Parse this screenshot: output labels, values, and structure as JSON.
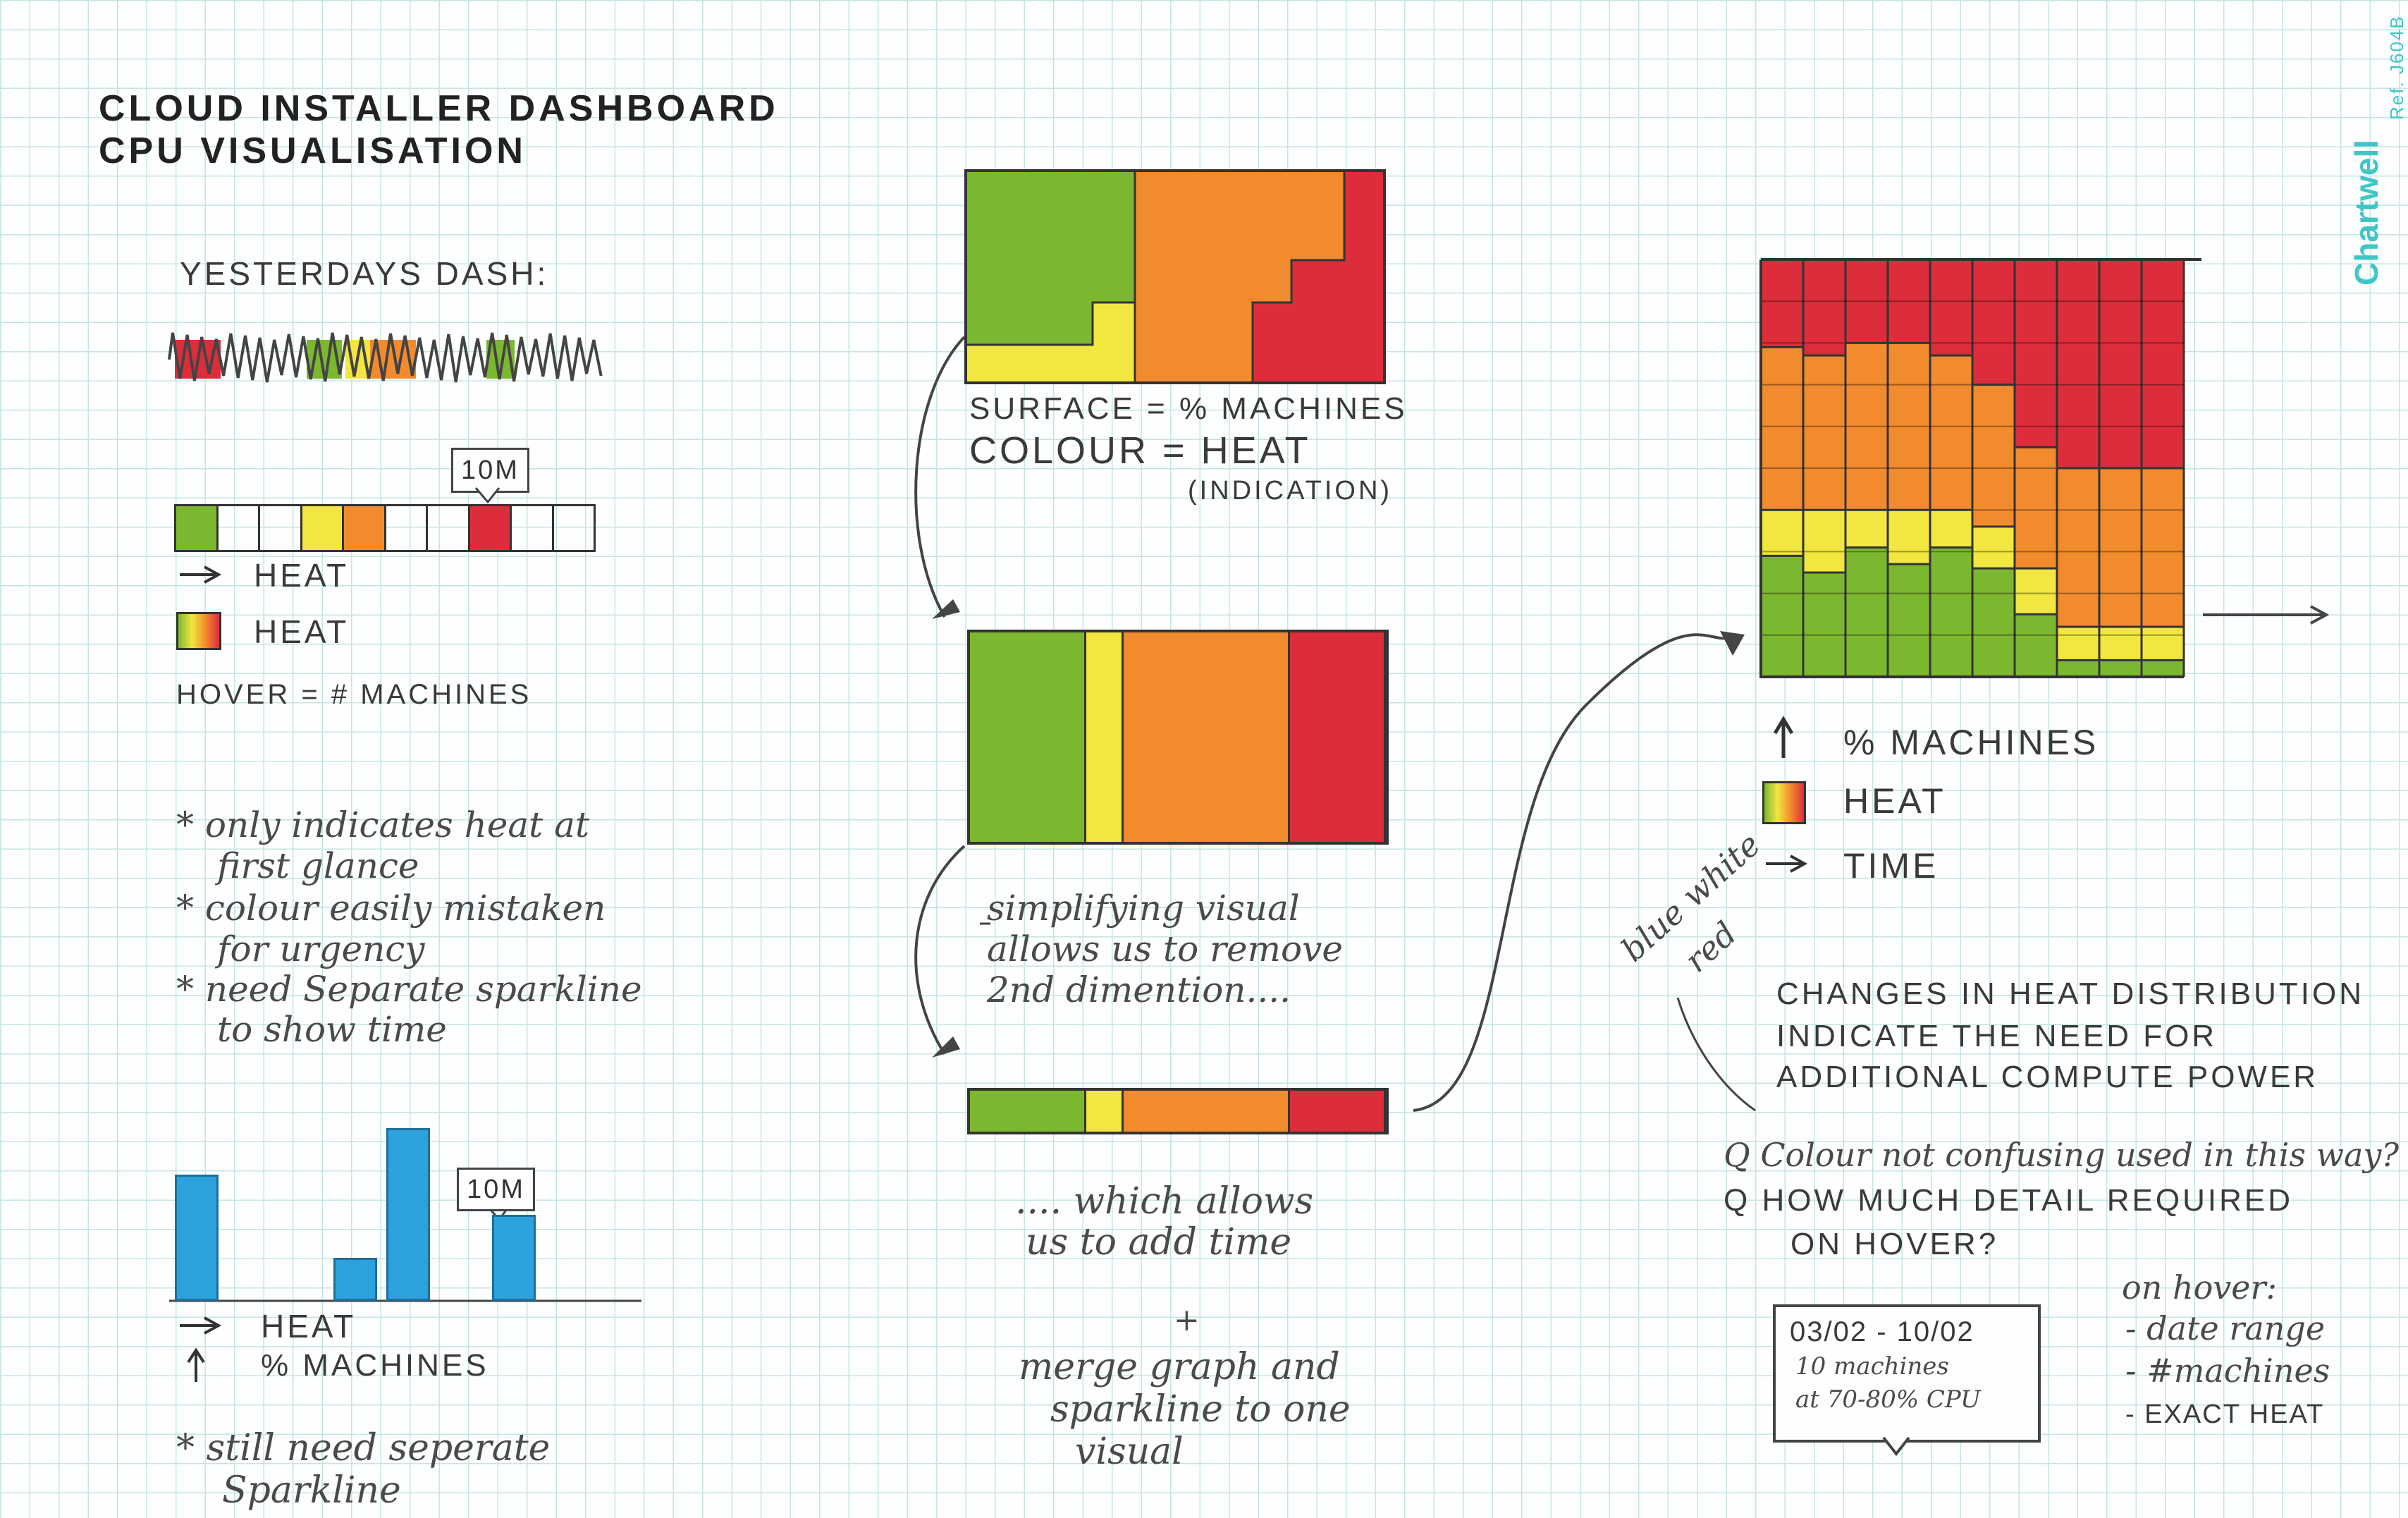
{
  "title": {
    "line1": "CLOUD INSTALLER DASHBOARD",
    "line2": "CPU VISUALISATION"
  },
  "brand": {
    "name": "Chartwell",
    "ref": "Ref. J604B"
  },
  "left": {
    "yesterday_label": "YESTERDAYS DASH:",
    "strip_tooltip": "10M",
    "legend1_time": "HEAT",
    "legend1_color": "HEAT",
    "hover_label": "HOVER = # MACHINES",
    "notes": [
      "* only indicates heat at",
      "first glance",
      "* colour easily mistaken",
      "for urgency",
      "* need Separate sparkline",
      "to show time"
    ],
    "bar_tooltip": "10M",
    "legend2_x": "HEAT",
    "legend2_y": "% MACHINES",
    "note2_line1": "* still need seperate",
    "note2_line2": "Sparkline"
  },
  "middle": {
    "surface_label": "SURFACE = % MACHINES",
    "colour_label": "COLOUR = HEAT",
    "indication_label": "(INDICATION)",
    "simplify_lines": [
      "simplifying visual",
      "allows us to remove",
      "2nd dimention...."
    ],
    "time_lines": [
      ".... which allows",
      "us to add time"
    ],
    "plus": "+",
    "merge_lines": [
      "merge graph and",
      "sparkline to one",
      "visual"
    ]
  },
  "right": {
    "legend_y": "% MACHINES",
    "legend_color": "HEAT",
    "legend_x": "TIME",
    "diag_note_line1": "blue white",
    "diag_note_line2": "red",
    "changes_lines": [
      "CHANGES IN HEAT DISTRIBUTION",
      "INDICATE THE NEED FOR",
      "ADDITIONAL COMPUTE POWER"
    ],
    "q1": "Q Colour not confusing used in this way?",
    "q2_line1": "Q HOW MUCH DETAIL REQUIRED",
    "q2_line2": "ON HOVER?",
    "tooltip_lines": [
      "03/02 - 10/02",
      "10 machines",
      "at 70-80% CPU"
    ],
    "hover_title": "on hover:",
    "hover_items": [
      "- date range",
      "- #machines",
      "- EXACT HEAT"
    ]
  },
  "colors": {
    "green": "#7cb82f",
    "yellow": "#f2e640",
    "orange": "#f28b2e",
    "red": "#dd2d3b",
    "blue": "#2da1dc",
    "teal": "#3fc6c6"
  },
  "chart_data": [
    {
      "type": "heatmap",
      "name": "heat-strip",
      "values": [
        "green",
        "",
        "",
        "yellow",
        "orange",
        "",
        "",
        "red",
        "",
        ""
      ]
    },
    {
      "type": "bar",
      "name": "machines-per-heat",
      "categories": [
        "1",
        "2",
        "3",
        "4",
        "5",
        "6",
        "7",
        "8"
      ],
      "values": [
        0.73,
        0,
        0,
        0.25,
        1.0,
        0,
        0.5,
        0
      ]
    },
    {
      "type": "area",
      "name": "heat-distribution-over-time",
      "x": [
        1,
        2,
        3,
        4,
        5,
        6,
        7,
        8,
        9,
        10
      ],
      "series": [
        {
          "color": "green",
          "values": [
            0.29,
            0.25,
            0.31,
            0.27,
            0.31,
            0.26,
            0.15,
            0.04,
            0.04,
            0.04
          ]
        },
        {
          "color": "yellow",
          "values": [
            0.11,
            0.15,
            0.09,
            0.13,
            0.09,
            0.1,
            0.11,
            0.08,
            0.08,
            0.08
          ]
        },
        {
          "color": "orange",
          "values": [
            0.39,
            0.37,
            0.4,
            0.4,
            0.37,
            0.34,
            0.29,
            0.38,
            0.38,
            0.38
          ]
        },
        {
          "color": "red",
          "values": [
            0.21,
            0.23,
            0.2,
            0.2,
            0.23,
            0.3,
            0.45,
            0.5,
            0.5,
            0.5
          ]
        }
      ]
    }
  ]
}
